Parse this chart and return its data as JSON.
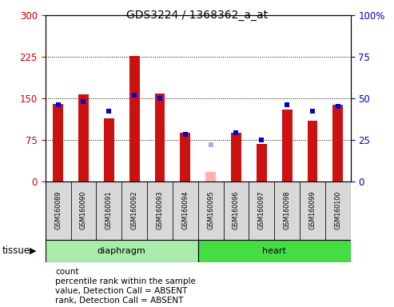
{
  "title": "GDS3224 / 1368362_a_at",
  "samples": [
    "GSM160089",
    "GSM160090",
    "GSM160091",
    "GSM160092",
    "GSM160093",
    "GSM160094",
    "GSM160095",
    "GSM160096",
    "GSM160097",
    "GSM160098",
    "GSM160099",
    "GSM160100"
  ],
  "count_values": [
    140,
    157,
    113,
    226,
    158,
    88,
    null,
    88,
    68,
    130,
    110,
    138
  ],
  "rank_values": [
    46,
    48,
    42,
    52,
    50,
    28,
    null,
    29,
    25,
    46,
    42,
    45
  ],
  "absent_value": [
    null,
    null,
    null,
    null,
    null,
    null,
    17,
    null,
    null,
    null,
    null,
    null
  ],
  "absent_rank": [
    null,
    null,
    null,
    null,
    null,
    null,
    22,
    null,
    null,
    null,
    null,
    null
  ],
  "left_ylim": [
    0,
    300
  ],
  "right_ylim": [
    0,
    100
  ],
  "left_yticks": [
    0,
    75,
    150,
    225,
    300
  ],
  "right_yticks": [
    0,
    25,
    50,
    75,
    100
  ],
  "left_tick_color": "#cc0000",
  "right_tick_color": "#0000cc",
  "bar_color": "#cc1111",
  "rank_marker_color": "#0000cc",
  "absent_bar_color": "#ffb0b0",
  "absent_rank_color": "#aaaaee",
  "diaphragm_color": "#aaeaaa",
  "heart_color": "#44dd44",
  "tick_bg": "#d8d8d8",
  "bar_width": 0.4,
  "diaphragm_label": "diaphragm",
  "heart_label": "heart",
  "tissue_label": "tissue",
  "legend": [
    {
      "color": "#cc1111",
      "text": "count",
      "type": "rect"
    },
    {
      "color": "#0000cc",
      "text": "percentile rank within the sample",
      "type": "square"
    },
    {
      "color": "#ffb0b0",
      "text": "value, Detection Call = ABSENT",
      "type": "rect"
    },
    {
      "color": "#aaaaee",
      "text": "rank, Detection Call = ABSENT",
      "type": "square"
    }
  ]
}
